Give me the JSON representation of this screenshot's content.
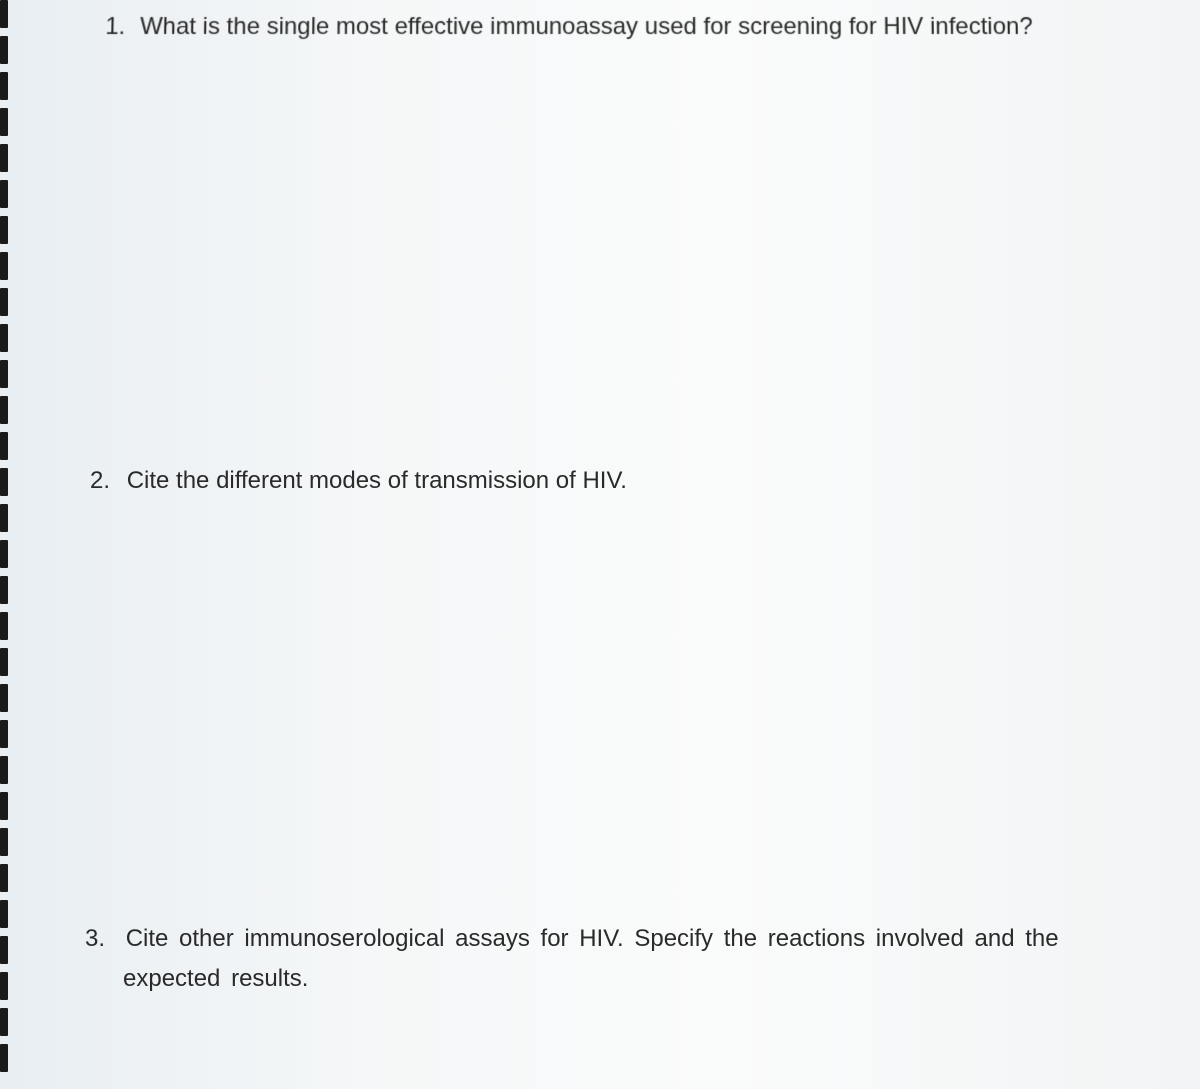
{
  "document": {
    "background_color": "#f5f7f8",
    "text_color": "#2a2a2a",
    "font_family": "Segoe UI",
    "font_size": 24,
    "spiral_color": "#1a1a1a",
    "spiral_count": 30
  },
  "questions": {
    "q1": {
      "number": "1.",
      "text": "What is the single most effective immunoassay used for screening for HIV infection?"
    },
    "q2": {
      "number": "2.",
      "text": "Cite the different modes of transmission of HIV."
    },
    "q3": {
      "number": "3.",
      "text_line1": "Cite other immunoserological assays for HIV. Specify the reactions involved and the",
      "text_line2": "expected results."
    }
  }
}
